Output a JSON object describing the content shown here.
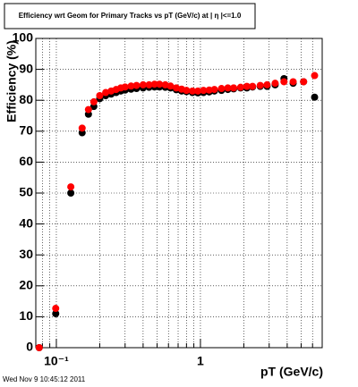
{
  "chart_data": {
    "type": "scatter",
    "title": "Efficiency wrt Geom for Primary Tracks vs pT (GeV/c) at | η |<=1.0",
    "x_label": "pT (GeV/c)",
    "y_label": "Efficiency (%)",
    "timestamp": "Wed Nov  9 10:45:12 2011",
    "x": [
      0.076,
      0.099,
      0.126,
      0.151,
      0.167,
      0.182,
      0.2,
      0.22,
      0.24,
      0.26,
      0.28,
      0.3,
      0.33,
      0.36,
      0.4,
      0.44,
      0.48,
      0.52,
      0.57,
      0.62,
      0.68,
      0.74,
      0.8,
      0.88,
      0.96,
      1.05,
      1.15,
      1.25,
      1.4,
      1.55,
      1.7,
      1.9,
      2.1,
      2.3,
      2.6,
      2.9,
      3.3,
      3.8,
      4.4,
      5.2,
      6.2
    ],
    "series": [
      {
        "color": "#000000",
        "values": [
          0,
          11,
          50,
          69.5,
          75.5,
          78,
          80.5,
          81.5,
          82,
          82.5,
          83,
          83.3,
          83.6,
          83.8,
          84,
          84.2,
          84.3,
          84.3,
          84.2,
          84,
          83.4,
          83,
          82.8,
          82.5,
          82.4,
          82.5,
          82.7,
          83,
          83.2,
          83.5,
          83.7,
          84,
          84,
          84.3,
          84.5,
          84.5,
          85,
          87,
          85.5,
          86,
          81
        ]
      },
      {
        "color": "#ff0000",
        "values": [
          0,
          12.7,
          52,
          71,
          77,
          79.5,
          81.5,
          82.5,
          83,
          83.5,
          84,
          84.3,
          84.6,
          84.8,
          85,
          85,
          85.2,
          85.2,
          85,
          84.6,
          84,
          83.6,
          83.2,
          83,
          83,
          83.2,
          83.3,
          83.5,
          83.8,
          84,
          84,
          84.2,
          84.5,
          84.5,
          84.8,
          85,
          85.5,
          86,
          86,
          86,
          88
        ]
      }
    ],
    "xlog": true,
    "xlim": [
      0.072,
      7
    ],
    "xticks": [
      {
        "value": 0.1,
        "label": "10⁻¹"
      },
      1
    ],
    "xminorticks": [
      0.08,
      0.09,
      0.2,
      0.3,
      0.4,
      0.5,
      0.6,
      0.7,
      0.8,
      0.9,
      2,
      3,
      4,
      5,
      6,
      7
    ],
    "ylim": [
      0,
      100
    ],
    "yticks": [
      0,
      10,
      20,
      30,
      40,
      50,
      60,
      70,
      80,
      90,
      100
    ],
    "grid": true
  }
}
